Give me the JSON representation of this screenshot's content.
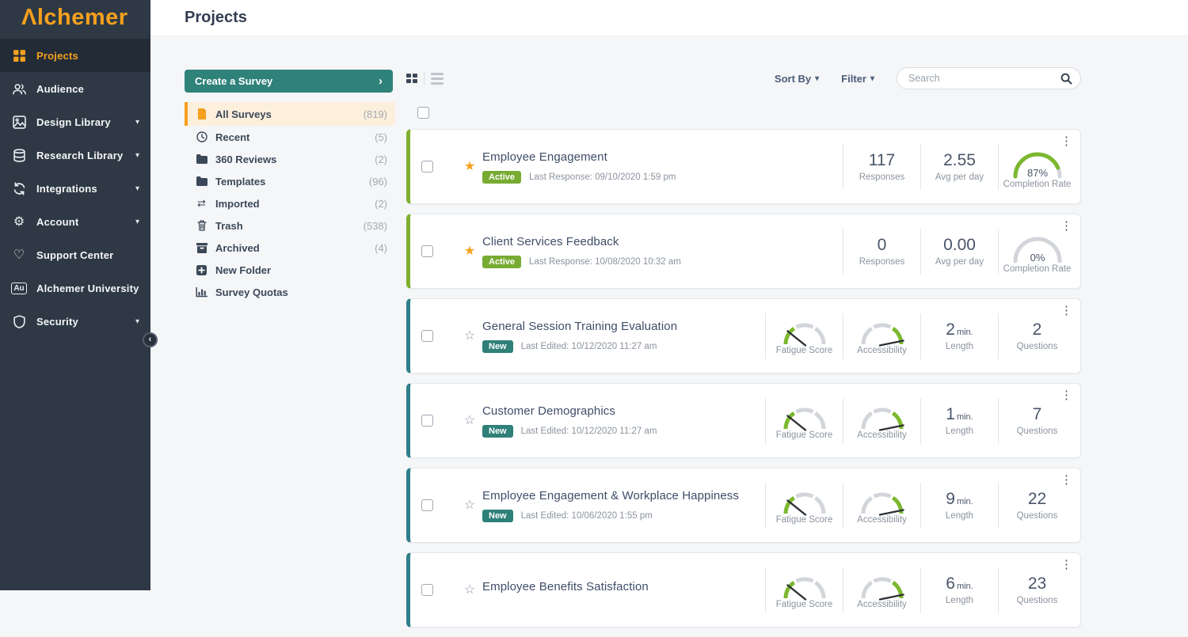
{
  "brand": {
    "logo": "Λlchemer",
    "accent": "#f5a01e"
  },
  "header": {
    "title": "Projects"
  },
  "sidebar": {
    "items": [
      {
        "label": "Projects",
        "icon": "grid-icon",
        "active": true,
        "chevron": false
      },
      {
        "label": "Audience",
        "icon": "people-icon",
        "active": false,
        "chevron": false
      },
      {
        "label": "Design Library",
        "icon": "image-icon",
        "active": false,
        "chevron": true
      },
      {
        "label": "Research Library",
        "icon": "database-icon",
        "active": false,
        "chevron": true
      },
      {
        "label": "Integrations",
        "icon": "sync-icon",
        "active": false,
        "chevron": true
      },
      {
        "label": "Account",
        "icon": "gear-icon",
        "active": false,
        "chevron": true
      },
      {
        "label": "Support Center",
        "icon": "heart-icon",
        "active": false,
        "chevron": false
      },
      {
        "label": "Alchemer University",
        "icon": "au-icon",
        "active": false,
        "chevron": false
      },
      {
        "label": "Security",
        "icon": "shield-icon",
        "active": false,
        "chevron": true
      }
    ],
    "collapse_glyph": "‹"
  },
  "folders": {
    "create_button": "Create a Survey",
    "create_chevron": "›",
    "items": [
      {
        "label": "All Surveys",
        "count": "(819)",
        "icon": "file-icon",
        "selected": true
      },
      {
        "label": "Recent",
        "count": "(5)",
        "icon": "clock-icon",
        "selected": false
      },
      {
        "label": "360 Reviews",
        "count": "(2)",
        "icon": "folder-icon",
        "selected": false
      },
      {
        "label": "Templates",
        "count": "(96)",
        "icon": "folder-icon",
        "selected": false
      },
      {
        "label": "Imported",
        "count": "(2)",
        "icon": "swap-icon",
        "selected": false
      },
      {
        "label": "Trash",
        "count": "(538)",
        "icon": "trash-icon",
        "selected": false
      },
      {
        "label": "Archived",
        "count": "(4)",
        "icon": "archive-icon",
        "selected": false
      },
      {
        "label": "New Folder",
        "count": "",
        "icon": "plus-icon",
        "selected": false
      },
      {
        "label": "Survey Quotas",
        "count": "",
        "icon": "chart-icon",
        "selected": false
      }
    ]
  },
  "toolbar": {
    "sort_label": "Sort By",
    "filter_label": "Filter",
    "search_placeholder": "Search",
    "search_value": ""
  },
  "labels": {
    "responses": "Responses",
    "avg_per_day": "Avg per day",
    "completion_rate": "Completion Rate",
    "fatigue": "Fatigue Score",
    "accessibility": "Accessibility",
    "length": "Length",
    "min_unit": "min.",
    "questions": "Questions"
  },
  "cards": [
    {
      "title": "Employee Engagement",
      "starred": true,
      "badge": "Active",
      "badge_color": "green",
      "meta": "Last Response: 09/10/2020 1:59 pm",
      "accent": "green",
      "type": "active",
      "responses": "117",
      "avg_per_day": "2.55",
      "completion_display": "87%",
      "completion_pct": 87
    },
    {
      "title": "Client Services Feedback",
      "starred": true,
      "badge": "Active",
      "badge_color": "green",
      "meta": "Last Response: 10/08/2020 10:32 am",
      "accent": "green",
      "type": "active",
      "responses": "0",
      "avg_per_day": "0.00",
      "completion_display": "0%",
      "completion_pct": 0
    },
    {
      "title": "General Session Training Evaluation",
      "starred": false,
      "badge": "New",
      "badge_color": "teal",
      "meta": "Last Edited: 10/12/2020 11:27 am",
      "accent": "teal",
      "type": "new",
      "length_min": "2",
      "questions": "2"
    },
    {
      "title": "Customer Demographics",
      "starred": false,
      "badge": "New",
      "badge_color": "teal",
      "meta": "Last Edited: 10/12/2020 11:27 am",
      "accent": "teal",
      "type": "new",
      "length_min": "1",
      "questions": "7"
    },
    {
      "title": "Employee Engagement & Workplace Happiness",
      "starred": false,
      "badge": "New",
      "badge_color": "teal",
      "meta": "Last Edited: 10/06/2020 1:55 pm",
      "accent": "teal",
      "type": "new",
      "length_min": "9",
      "questions": "22"
    },
    {
      "title": "Employee Benefits Satisfaction",
      "starred": false,
      "badge": "",
      "badge_color": "teal",
      "meta": "",
      "accent": "teal",
      "type": "new",
      "length_min": "6",
      "questions": "23"
    }
  ],
  "colors": {
    "sidebar_bg": "#2e3945",
    "orange": "#f5a01e",
    "teal_button": "#2f827a",
    "badge_green": "#77ab32",
    "badge_teal": "#2e8078",
    "card_border_green": "#7eb02e",
    "card_border_teal": "#2f7f8a",
    "gauge_green": "#7cb82f",
    "gauge_gray": "#d2d5d9"
  }
}
